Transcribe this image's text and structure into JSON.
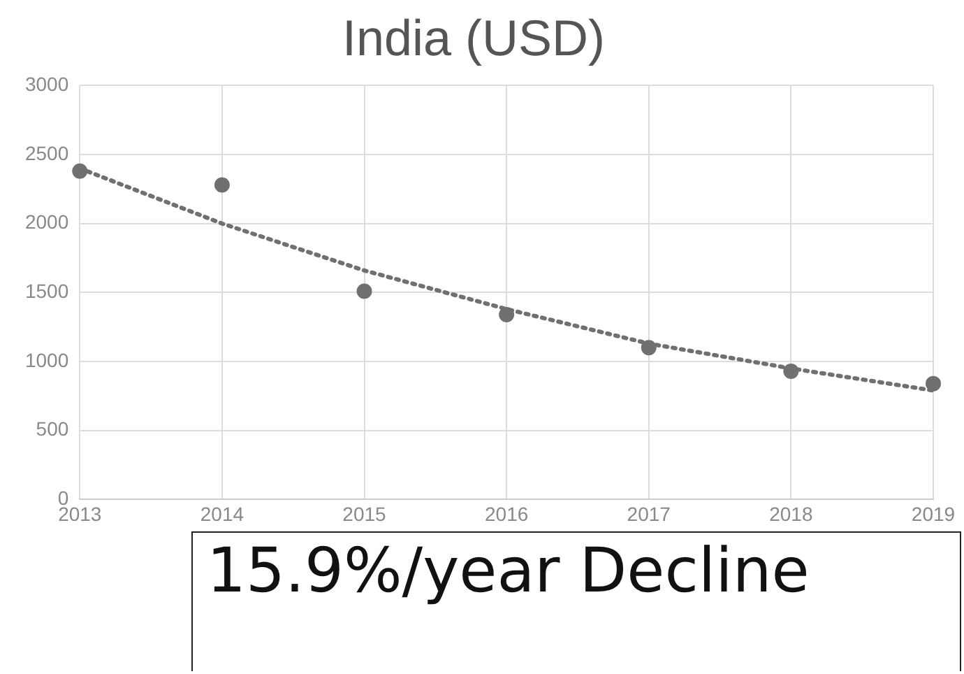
{
  "chart_data": {
    "type": "scatter",
    "title": "India (USD)",
    "x": [
      2013,
      2014,
      2015,
      2016,
      2017,
      2018,
      2019
    ],
    "series": [
      {
        "type": "scatter",
        "color": "#707070",
        "values": [
          2380,
          2280,
          1510,
          1340,
          1100,
          930,
          840
        ],
        "marker": "circle"
      },
      {
        "type": "line",
        "color": "#707070",
        "values": [
          2400,
          2000,
          1660,
          1380,
          1130,
          950,
          790
        ],
        "line_style": "dotted",
        "marker": "none"
      }
    ],
    "xlim": [
      2013,
      2019
    ],
    "xticks": [
      2013,
      2014,
      2015,
      2016,
      2017,
      2018,
      2019
    ],
    "ylim": [
      0,
      3000
    ],
    "yticks": [
      0,
      500,
      1000,
      1500,
      2000,
      2500,
      3000
    ],
    "grid": true,
    "annotations": [
      "15.9%/year Decline"
    ]
  }
}
